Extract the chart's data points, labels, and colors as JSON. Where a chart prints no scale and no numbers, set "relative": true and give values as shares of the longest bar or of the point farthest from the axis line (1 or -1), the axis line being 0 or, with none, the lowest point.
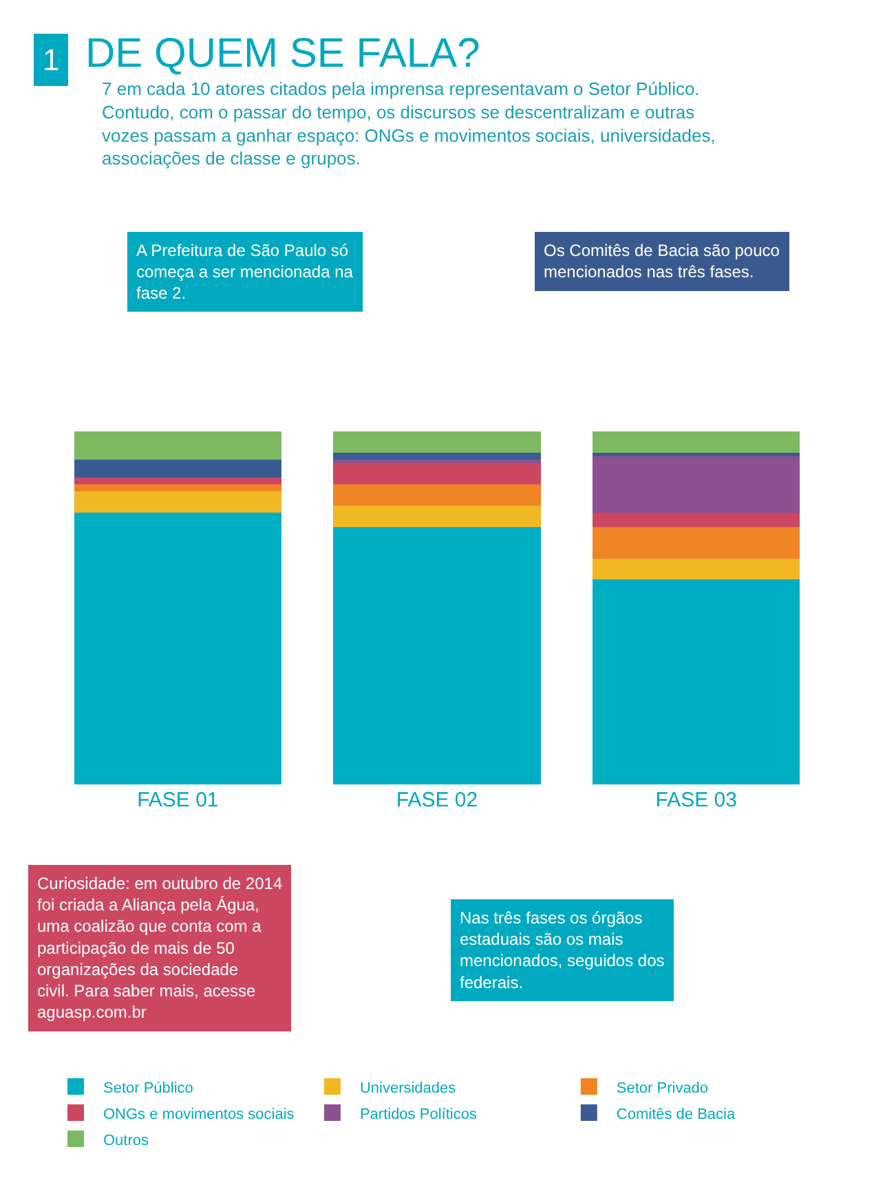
{
  "chart_data": {
    "type": "bar",
    "stacked": true,
    "relative": true,
    "title": "DE QUEM SE FALA?",
    "subtitle": "7 em cada 10 atores citados pela imprensa representavam o Setor Público. Contudo, com o passar do tempo, os discursos se descentralizam e outras vozes passam a ganhar espaço: ONGs e movimentos sociais, universidades, associações de classe e grupos.",
    "annotations": [
      "1",
      "A Prefeitura de São Paulo só começa a ser mencionada na fase 2.",
      "Os Comitês de Bacia são pouco mencionados nas três fases.",
      "Curiosidade: em outubro de 2014 foi criada a Aliança pela Água, uma coalizão que conta com a participação de mais de 50 organizações da sociedade civil. Para saber mais, acesse aguasp.com.br",
      "Nas três fases os órgãos estaduais são os mais mencionados, seguidos dos federais."
    ],
    "categories": [
      "FASE 01",
      "FASE 02",
      "FASE 03"
    ],
    "series": [
      {
        "name": "Setor Público",
        "color": "#00aec3",
        "values": [
          0.77,
          0.73,
          0.58
        ]
      },
      {
        "name": "Universidades",
        "color": "#f2b824",
        "values": [
          0.06,
          0.06,
          0.06
        ]
      },
      {
        "name": "Setor Privado",
        "color": "#ef8524",
        "values": [
          0.02,
          0.06,
          0.09
        ]
      },
      {
        "name": "ONGs e movimentos sociais",
        "color": "#cc4760",
        "values": [
          0.02,
          0.06,
          0.04
        ]
      },
      {
        "name": "Partidos Políticos",
        "color": "#8d5091",
        "values": [
          0.0,
          0.01,
          0.16
        ]
      },
      {
        "name": "Comitês de Bacia",
        "color": "#3a5c92",
        "values": [
          0.05,
          0.02,
          0.01
        ]
      },
      {
        "name": "Outros",
        "color": "#7db961",
        "values": [
          0.08,
          0.06,
          0.06
        ]
      }
    ],
    "legend": "bottom",
    "tick_labels": "x",
    "grid": false
  }
}
